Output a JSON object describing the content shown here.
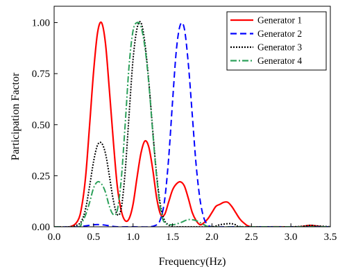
{
  "chart_data": {
    "type": "line",
    "title": "",
    "xlabel": "Frequency(Hz)",
    "ylabel": "Participation Factor",
    "xlim": [
      0.0,
      3.5
    ],
    "ylim": [
      0.0,
      1.08
    ],
    "xticks": [
      "0.0",
      "0.5",
      "1.0",
      "1.5",
      "2.0",
      "2.5",
      "3.0",
      "3.5"
    ],
    "yticks": [
      "0.00",
      "0.25",
      "0.50",
      "0.75",
      "1.00"
    ],
    "grid": false,
    "legend_position": "top-right",
    "series": [
      {
        "name": "Generator 1",
        "color": "#ff0000",
        "style": "solid",
        "x": [
          0.0,
          0.2,
          0.3,
          0.35,
          0.4,
          0.45,
          0.5,
          0.55,
          0.6,
          0.65,
          0.7,
          0.75,
          0.8,
          0.85,
          0.9,
          0.95,
          1.0,
          1.05,
          1.1,
          1.15,
          1.2,
          1.25,
          1.3,
          1.35,
          1.4,
          1.45,
          1.5,
          1.55,
          1.6,
          1.65,
          1.7,
          1.75,
          1.8,
          1.85,
          1.9,
          1.95,
          2.0,
          2.05,
          2.1,
          2.15,
          2.2,
          2.25,
          2.3,
          2.35,
          2.4,
          2.5,
          2.8,
          3.1,
          3.2,
          3.25,
          3.3,
          3.4,
          3.5
        ],
        "y": [
          0.0,
          0.0,
          0.03,
          0.1,
          0.25,
          0.5,
          0.76,
          0.95,
          1.0,
          0.9,
          0.67,
          0.42,
          0.2,
          0.08,
          0.03,
          0.04,
          0.11,
          0.24,
          0.36,
          0.42,
          0.39,
          0.28,
          0.14,
          0.06,
          0.06,
          0.12,
          0.18,
          0.21,
          0.22,
          0.2,
          0.14,
          0.07,
          0.03,
          0.01,
          0.02,
          0.04,
          0.07,
          0.1,
          0.11,
          0.12,
          0.12,
          0.1,
          0.07,
          0.04,
          0.02,
          0.0,
          0.0,
          0.0,
          0.005,
          0.007,
          0.005,
          0.0,
          0.0
        ]
      },
      {
        "name": "Generator 2",
        "color": "#0000ff",
        "style": "dashed",
        "x": [
          0.0,
          0.3,
          0.5,
          0.6,
          0.7,
          0.8,
          1.0,
          1.2,
          1.3,
          1.35,
          1.4,
          1.45,
          1.5,
          1.55,
          1.6,
          1.65,
          1.7,
          1.75,
          1.8,
          1.85,
          1.9,
          1.95,
          2.0,
          2.2,
          2.5,
          3.0,
          3.5
        ],
        "y": [
          0.0,
          0.0,
          0.01,
          0.01,
          0.005,
          0.0,
          0.0,
          0.0,
          0.01,
          0.04,
          0.13,
          0.33,
          0.61,
          0.87,
          0.99,
          0.97,
          0.8,
          0.55,
          0.3,
          0.13,
          0.04,
          0.01,
          0.0,
          0.0,
          0.0,
          0.0,
          0.0
        ]
      },
      {
        "name": "Generator 3",
        "color": "#000000",
        "style": "dotted",
        "x": [
          0.0,
          0.2,
          0.3,
          0.35,
          0.4,
          0.45,
          0.5,
          0.55,
          0.6,
          0.65,
          0.7,
          0.75,
          0.8,
          0.85,
          0.9,
          0.95,
          1.0,
          1.05,
          1.1,
          1.15,
          1.2,
          1.25,
          1.3,
          1.35,
          1.4,
          1.45,
          1.5,
          1.6,
          1.8,
          2.0,
          2.1,
          2.2,
          2.25,
          2.3,
          2.4,
          3.0,
          3.2,
          3.25,
          3.3,
          3.5
        ],
        "y": [
          0.0,
          0.0,
          0.01,
          0.03,
          0.09,
          0.2,
          0.32,
          0.4,
          0.41,
          0.36,
          0.25,
          0.13,
          0.06,
          0.09,
          0.27,
          0.55,
          0.82,
          0.97,
          1.0,
          0.9,
          0.71,
          0.47,
          0.25,
          0.1,
          0.03,
          0.01,
          0.0,
          0.0,
          0.0,
          0.0,
          0.01,
          0.015,
          0.015,
          0.01,
          0.0,
          0.0,
          0.005,
          0.008,
          0.005,
          0.0
        ]
      },
      {
        "name": "Generator 4",
        "color": "#2ca05a",
        "style": "dashdot",
        "x": [
          0.0,
          0.3,
          0.35,
          0.4,
          0.45,
          0.5,
          0.55,
          0.6,
          0.65,
          0.7,
          0.75,
          0.8,
          0.85,
          0.9,
          0.95,
          1.0,
          1.05,
          1.1,
          1.15,
          1.2,
          1.25,
          1.3,
          1.35,
          1.4,
          1.5,
          1.6,
          1.7,
          1.8,
          1.9,
          2.0,
          2.5,
          3.5
        ],
        "y": [
          0.0,
          0.0,
          0.02,
          0.06,
          0.12,
          0.19,
          0.22,
          0.21,
          0.17,
          0.1,
          0.06,
          0.08,
          0.23,
          0.5,
          0.79,
          0.96,
          1.0,
          0.98,
          0.88,
          0.7,
          0.46,
          0.24,
          0.08,
          0.02,
          0.01,
          0.02,
          0.035,
          0.03,
          0.01,
          0.0,
          0.0,
          0.0
        ]
      }
    ]
  }
}
